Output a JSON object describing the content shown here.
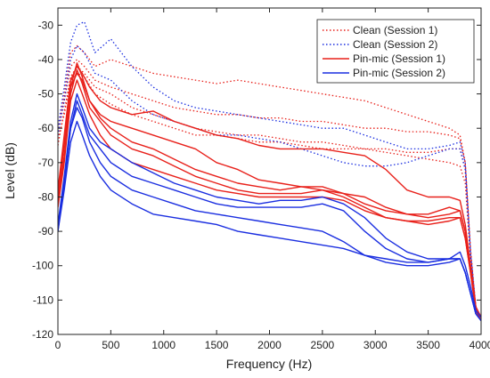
{
  "chart_data": {
    "type": "line",
    "xlabel": "Frequency (Hz)",
    "ylabel": "Level (dB)",
    "xlim": [
      0,
      4000
    ],
    "ylim": [
      -120,
      -25
    ],
    "xticks": [
      0,
      500,
      1000,
      1500,
      2000,
      2500,
      3000,
      3500,
      4000
    ],
    "yticks": [
      -30,
      -40,
      -50,
      -60,
      -70,
      -80,
      -90,
      -100,
      -110,
      -120
    ],
    "grid": false,
    "legend_position": "top-right",
    "legend": [
      {
        "label": "Clean (Session 1)",
        "color": "#e8201a",
        "style": "dotted"
      },
      {
        "label": "Clean (Session 2)",
        "color": "#1a2ee0",
        "style": "dotted"
      },
      {
        "label": "Pin-mic (Session 1)",
        "color": "#e8201a",
        "style": "solid"
      },
      {
        "label": "Pin-mic (Session 2)",
        "color": "#1a2ee0",
        "style": "solid"
      }
    ],
    "series": [
      {
        "color": "#e8201a",
        "style": "dotted",
        "x": [
          0,
          60,
          120,
          180,
          250,
          350,
          500,
          700,
          900,
          1100,
          1300,
          1500,
          1700,
          1900,
          2100,
          2300,
          2500,
          2700,
          2900,
          3100,
          3300,
          3500,
          3700,
          3800,
          3850,
          3900,
          3950,
          4000
        ],
        "y": [
          -62,
          -50,
          -38,
          -36,
          -38,
          -42,
          -40,
          -42,
          -44,
          -45,
          -46,
          -47,
          -46,
          -47,
          -48,
          -49,
          -50,
          -51,
          -52,
          -54,
          -56,
          -58,
          -60,
          -62,
          -70,
          -95,
          -112,
          -115
        ]
      },
      {
        "color": "#e8201a",
        "style": "dotted",
        "x": [
          0,
          60,
          120,
          180,
          250,
          350,
          500,
          700,
          900,
          1100,
          1300,
          1500,
          1700,
          1900,
          2100,
          2300,
          2500,
          2700,
          2900,
          3100,
          3300,
          3500,
          3700,
          3800,
          3850,
          3900,
          3950,
          4000
        ],
        "y": [
          -60,
          -52,
          -42,
          -40,
          -42,
          -46,
          -48,
          -50,
          -52,
          -54,
          -55,
          -56,
          -56,
          -57,
          -57,
          -58,
          -58,
          -59,
          -60,
          -60,
          -61,
          -61,
          -62,
          -63,
          -70,
          -96,
          -112,
          -115
        ]
      },
      {
        "color": "#e8201a",
        "style": "dotted",
        "x": [
          0,
          60,
          120,
          180,
          250,
          350,
          500,
          700,
          900,
          1100,
          1300,
          1500,
          1700,
          1900,
          2100,
          2300,
          2500,
          2700,
          2900,
          3100,
          3300,
          3500,
          3700,
          3800,
          3850,
          3900,
          3950,
          4000
        ],
        "y": [
          -65,
          -55,
          -45,
          -42,
          -44,
          -48,
          -50,
          -54,
          -56,
          -58,
          -60,
          -61,
          -62,
          -62,
          -63,
          -64,
          -64,
          -65,
          -66,
          -66,
          -67,
          -67,
          -66,
          -66,
          -72,
          -97,
          -113,
          -115
        ]
      },
      {
        "color": "#e8201a",
        "style": "dotted",
        "x": [
          0,
          60,
          120,
          180,
          250,
          350,
          500,
          700,
          900,
          1100,
          1300,
          1500,
          1700,
          1900,
          2100,
          2300,
          2500,
          2700,
          2900,
          3100,
          3300,
          3500,
          3700,
          3800,
          3850,
          3900,
          3950,
          4000
        ],
        "y": [
          -63,
          -56,
          -46,
          -44,
          -45,
          -50,
          -53,
          -56,
          -58,
          -60,
          -62,
          -62,
          -63,
          -64,
          -64,
          -65,
          -66,
          -66,
          -66,
          -67,
          -68,
          -69,
          -70,
          -71,
          -76,
          -98,
          -113,
          -115
        ]
      },
      {
        "color": "#1a2ee0",
        "style": "dotted",
        "x": [
          0,
          60,
          120,
          180,
          250,
          350,
          500,
          700,
          900,
          1100,
          1300,
          1500,
          1700,
          1900,
          2100,
          2300,
          2500,
          2700,
          2900,
          3100,
          3300,
          3500,
          3700,
          3800,
          3850,
          3900,
          3950,
          4000
        ],
        "y": [
          -60,
          -48,
          -35,
          -30,
          -29,
          -38,
          -34,
          -42,
          -48,
          -52,
          -54,
          -55,
          -56,
          -57,
          -58,
          -59,
          -60,
          -60,
          -62,
          -64,
          -66,
          -66,
          -65,
          -64,
          -70,
          -96,
          -112,
          -115
        ]
      },
      {
        "color": "#1a2ee0",
        "style": "dotted",
        "x": [
          0,
          60,
          120,
          180,
          250,
          350,
          500,
          700,
          900,
          1100,
          1300,
          1500,
          1700,
          1900,
          2100,
          2300,
          2500,
          2700,
          2900,
          3100,
          3300,
          3500,
          3700,
          3800,
          3850,
          3900,
          3950,
          4000
        ],
        "y": [
          -62,
          -52,
          -40,
          -36,
          -38,
          -44,
          -46,
          -52,
          -56,
          -58,
          -60,
          -62,
          -62,
          -63,
          -64,
          -66,
          -68,
          -70,
          -71,
          -71,
          -70,
          -68,
          -66,
          -66,
          -72,
          -97,
          -113,
          -116
        ]
      },
      {
        "color": "#e8201a",
        "style": "solid",
        "x": [
          0,
          60,
          120,
          180,
          230,
          300,
          400,
          500,
          700,
          900,
          1100,
          1300,
          1500,
          1700,
          1900,
          2100,
          2300,
          2500,
          2700,
          2900,
          3100,
          3300,
          3500,
          3700,
          3800,
          3850,
          3900,
          3950,
          4000
        ],
        "y": [
          -80,
          -65,
          -48,
          -41,
          -45,
          -52,
          -57,
          -60,
          -64,
          -66,
          -69,
          -72,
          -74,
          -76,
          -77,
          -78,
          -77,
          -77,
          -79,
          -82,
          -84,
          -85,
          -86,
          -85,
          -84,
          -90,
          -100,
          -112,
          -115
        ]
      },
      {
        "color": "#e8201a",
        "style": "solid",
        "x": [
          0,
          60,
          120,
          180,
          230,
          300,
          400,
          500,
          700,
          900,
          1100,
          1300,
          1500,
          1700,
          1900,
          2100,
          2300,
          2500,
          2700,
          2900,
          3100,
          3300,
          3500,
          3700,
          3800,
          3850,
          3900,
          3950,
          4000
        ],
        "y": [
          -82,
          -68,
          -50,
          -43,
          -47,
          -54,
          -58,
          -62,
          -66,
          -68,
          -71,
          -74,
          -76,
          -78,
          -79,
          -79,
          -79,
          -78,
          -80,
          -83,
          -86,
          -87,
          -87,
          -86,
          -86,
          -92,
          -102,
          -113,
          -116
        ]
      },
      {
        "color": "#e8201a",
        "style": "solid",
        "x": [
          0,
          60,
          120,
          180,
          230,
          300,
          400,
          500,
          700,
          900,
          1100,
          1300,
          1500,
          1700,
          1900,
          2100,
          2300,
          2500,
          2700,
          2900,
          3100,
          3300,
          3500,
          3700,
          3800,
          3850,
          3900,
          3950,
          4000
        ],
        "y": [
          -78,
          -62,
          -46,
          -42,
          -44,
          -48,
          -52,
          -54,
          -56,
          -55,
          -58,
          -60,
          -62,
          -63,
          -65,
          -66,
          -66,
          -66,
          -67,
          -68,
          -72,
          -78,
          -80,
          -80,
          -81,
          -88,
          -100,
          -112,
          -115
        ]
      },
      {
        "color": "#e8201a",
        "style": "solid",
        "x": [
          0,
          60,
          120,
          180,
          230,
          300,
          400,
          500,
          700,
          900,
          1100,
          1300,
          1500,
          1700,
          1900,
          2100,
          2300,
          2500,
          2700,
          2900,
          3100,
          3300,
          3500,
          3700,
          3800,
          3850,
          3900,
          3950,
          4000
        ],
        "y": [
          -80,
          -64,
          -48,
          -44,
          -46,
          -52,
          -56,
          -58,
          -60,
          -62,
          -64,
          -66,
          -70,
          -72,
          -75,
          -76,
          -77,
          -78,
          -79,
          -80,
          -83,
          -85,
          -85,
          -83,
          -84,
          -90,
          -101,
          -113,
          -115
        ]
      },
      {
        "color": "#e8201a",
        "style": "solid",
        "x": [
          0,
          60,
          120,
          180,
          230,
          300,
          400,
          500,
          700,
          900,
          1100,
          1300,
          1500,
          1700,
          1900,
          2100,
          2300,
          2500,
          2700,
          2900,
          3100,
          3300,
          3500,
          3700,
          3800,
          3850,
          3900,
          3950,
          4000
        ],
        "y": [
          -83,
          -70,
          -52,
          -46,
          -50,
          -56,
          -62,
          -66,
          -70,
          -72,
          -74,
          -76,
          -78,
          -79,
          -80,
          -80,
          -80,
          -80,
          -81,
          -84,
          -86,
          -87,
          -88,
          -87,
          -86,
          -92,
          -102,
          -113,
          -116
        ]
      },
      {
        "color": "#1a2ee0",
        "style": "solid",
        "x": [
          0,
          60,
          120,
          180,
          230,
          300,
          400,
          500,
          700,
          900,
          1100,
          1300,
          1500,
          1700,
          1900,
          2100,
          2300,
          2500,
          2700,
          2900,
          3100,
          3300,
          3500,
          3700,
          3800,
          3850,
          3900,
          3950,
          4000
        ],
        "y": [
          -88,
          -74,
          -58,
          -50,
          -54,
          -60,
          -64,
          -66,
          -70,
          -73,
          -76,
          -78,
          -80,
          -81,
          -82,
          -81,
          -81,
          -80,
          -82,
          -86,
          -92,
          -96,
          -98,
          -98,
          -96,
          -100,
          -106,
          -113,
          -115
        ]
      },
      {
        "color": "#1a2ee0",
        "style": "solid",
        "x": [
          0,
          60,
          120,
          180,
          230,
          300,
          400,
          500,
          700,
          900,
          1100,
          1300,
          1500,
          1700,
          1900,
          2100,
          2300,
          2500,
          2700,
          2900,
          3100,
          3300,
          3500,
          3700,
          3800,
          3850,
          3900,
          3950,
          4000
        ],
        "y": [
          -90,
          -76,
          -60,
          -52,
          -56,
          -62,
          -66,
          -70,
          -74,
          -76,
          -78,
          -80,
          -82,
          -83,
          -83,
          -83,
          -83,
          -82,
          -84,
          -90,
          -95,
          -98,
          -99,
          -98,
          -98,
          -102,
          -108,
          -114,
          -116
        ]
      },
      {
        "color": "#1a2ee0",
        "style": "solid",
        "x": [
          0,
          60,
          120,
          180,
          230,
          300,
          400,
          500,
          700,
          900,
          1100,
          1300,
          1500,
          1700,
          1900,
          2100,
          2300,
          2500,
          2700,
          2900,
          3100,
          3300,
          3500,
          3700,
          3800,
          3850,
          3900,
          3950,
          4000
        ],
        "y": [
          -89,
          -76,
          -60,
          -54,
          -57,
          -64,
          -70,
          -74,
          -78,
          -80,
          -82,
          -84,
          -85,
          -86,
          -87,
          -88,
          -89,
          -90,
          -93,
          -97,
          -99,
          -100,
          -100,
          -99,
          -98,
          -102,
          -108,
          -114,
          -116
        ]
      },
      {
        "color": "#1a2ee0",
        "style": "solid",
        "x": [
          0,
          60,
          120,
          180,
          230,
          300,
          400,
          500,
          700,
          900,
          1100,
          1300,
          1500,
          1700,
          1900,
          2100,
          2300,
          2500,
          2700,
          2900,
          3100,
          3300,
          3500,
          3700,
          3800,
          3850,
          3900,
          3950,
          4000
        ],
        "y": [
          -90,
          -78,
          -64,
          -58,
          -62,
          -68,
          -74,
          -78,
          -82,
          -85,
          -86,
          -87,
          -88,
          -90,
          -91,
          -92,
          -93,
          -94,
          -95,
          -97,
          -98,
          -99,
          -99,
          -98,
          -98,
          -102,
          -108,
          -114,
          -116
        ]
      }
    ]
  }
}
